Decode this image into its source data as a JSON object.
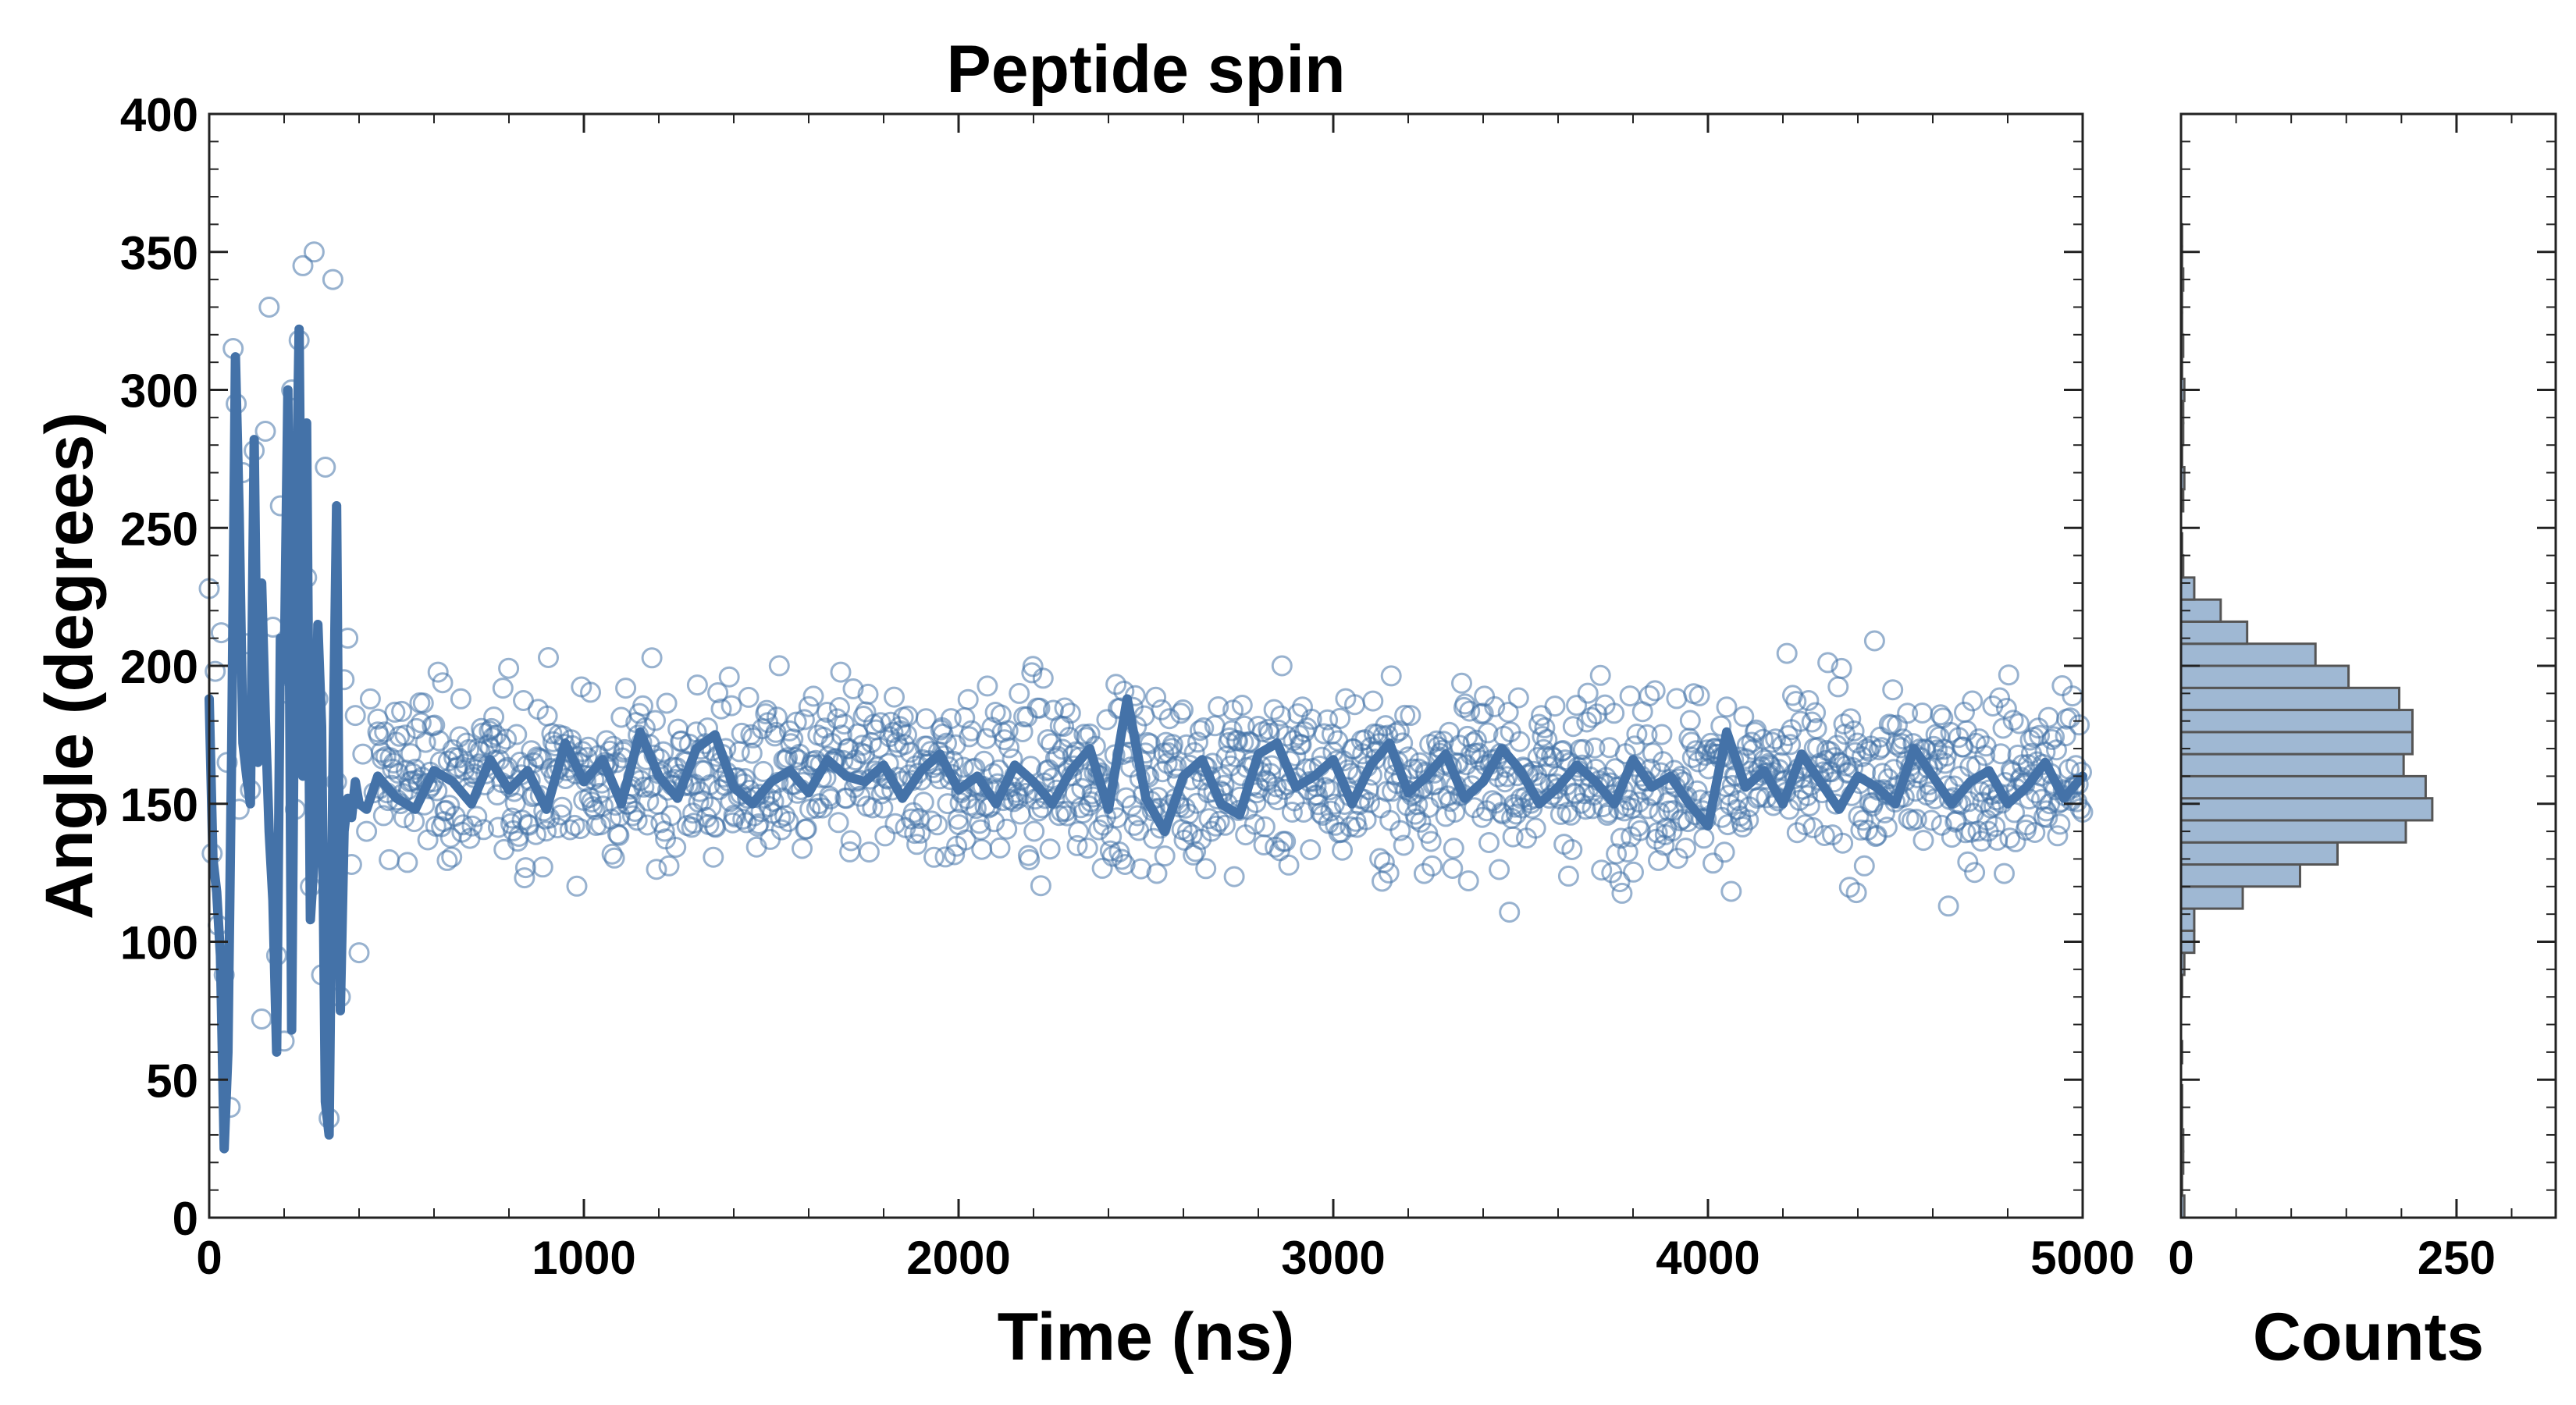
{
  "chart_data": [
    {
      "type": "scatter",
      "title": "Peptide spin",
      "xlabel": "Time (ns)",
      "ylabel": "Angle (degrees)",
      "xlim": [
        0,
        5000
      ],
      "ylim": [
        0,
        400
      ],
      "xticks": [
        0,
        1000,
        2000,
        3000,
        4000,
        5000
      ],
      "yticks": [
        0,
        50,
        100,
        150,
        200,
        250,
        300,
        350,
        400
      ],
      "grid": false,
      "colors": {
        "points": "#4472a8",
        "line": "#4472a8"
      },
      "series": [
        {
          "kind": "scatter-open-circles",
          "points": [
            [
              0,
              228
            ],
            [
              8,
              132
            ],
            [
              16,
              198
            ],
            [
              24,
              106
            ],
            [
              32,
              212
            ],
            [
              40,
              88
            ],
            [
              48,
              165
            ],
            [
              56,
              40
            ],
            [
              64,
              315
            ],
            [
              72,
              295
            ],
            [
              80,
              148
            ],
            [
              90,
              270
            ],
            [
              100,
              208
            ],
            [
              110,
              155
            ],
            [
              120,
              278
            ],
            [
              130,
              178
            ],
            [
              140,
              72
            ],
            [
              150,
              285
            ],
            [
              160,
              330
            ],
            [
              170,
              214
            ],
            [
              180,
              95
            ],
            [
              190,
              258
            ],
            [
              200,
              64
            ],
            [
              210,
              190
            ],
            [
              220,
              300
            ],
            [
              230,
              148
            ],
            [
              240,
              318
            ],
            [
              250,
              345
            ],
            [
              260,
              232
            ],
            [
              270,
              120
            ],
            [
              280,
              350
            ],
            [
              290,
              188
            ],
            [
              300,
              88
            ],
            [
              310,
              272
            ],
            [
              320,
              36
            ],
            [
              330,
              340
            ],
            [
              340,
              158
            ],
            [
              350,
              80
            ],
            [
              360,
              195
            ],
            [
              370,
              210
            ],
            [
              380,
              128
            ],
            [
              390,
              182
            ],
            [
              400,
              96
            ],
            [
              410,
              168
            ],
            [
              420,
              140
            ],
            [
              430,
              188
            ],
            [
              440,
              154
            ],
            [
              450,
              176
            ]
          ],
          "bulk": {
            "x_range": [
              450,
              5000
            ],
            "center": 160,
            "spread": 22,
            "min": 95,
            "max": 226
          }
        },
        {
          "kind": "line",
          "name": "",
          "points": [
            [
              0,
              188
            ],
            [
              10,
              130
            ],
            [
              20,
              118
            ],
            [
              30,
              95
            ],
            [
              40,
              25
            ],
            [
              50,
              60
            ],
            [
              60,
              170
            ],
            [
              70,
              312
            ],
            [
              80,
              255
            ],
            [
              90,
              172
            ],
            [
              100,
              160
            ],
            [
              110,
              150
            ],
            [
              120,
              282
            ],
            [
              130,
              165
            ],
            [
              140,
              230
            ],
            [
              150,
              180
            ],
            [
              160,
              140
            ],
            [
              170,
              115
            ],
            [
              180,
              60
            ],
            [
              190,
              210
            ],
            [
              200,
              195
            ],
            [
              210,
              300
            ],
            [
              220,
              68
            ],
            [
              230,
              238
            ],
            [
              240,
              322
            ],
            [
              250,
              160
            ],
            [
              260,
              288
            ],
            [
              270,
              108
            ],
            [
              280,
              130
            ],
            [
              290,
              215
            ],
            [
              300,
              178
            ],
            [
              310,
              42
            ],
            [
              320,
              30
            ],
            [
              330,
              160
            ],
            [
              340,
              258
            ],
            [
              350,
              75
            ],
            [
              360,
              140
            ],
            [
              370,
              152
            ],
            [
              380,
              145
            ],
            [
              390,
              158
            ],
            [
              400,
              150
            ],
            [
              420,
              148
            ],
            [
              450,
              160
            ],
            [
              500,
              152
            ],
            [
              550,
              148
            ],
            [
              600,
              162
            ],
            [
              650,
              158
            ],
            [
              700,
              150
            ],
            [
              750,
              166
            ],
            [
              800,
              155
            ],
            [
              850,
              162
            ],
            [
              900,
              148
            ],
            [
              950,
              172
            ],
            [
              1000,
              158
            ],
            [
              1050,
              166
            ],
            [
              1100,
              150
            ],
            [
              1150,
              176
            ],
            [
              1200,
              160
            ],
            [
              1250,
              152
            ],
            [
              1300,
              170
            ],
            [
              1350,
              175
            ],
            [
              1400,
              156
            ],
            [
              1450,
              150
            ],
            [
              1500,
              158
            ],
            [
              1550,
              162
            ],
            [
              1600,
              154
            ],
            [
              1650,
              166
            ],
            [
              1700,
              160
            ],
            [
              1750,
              158
            ],
            [
              1800,
              164
            ],
            [
              1850,
              152
            ],
            [
              1900,
              162
            ],
            [
              1950,
              168
            ],
            [
              2000,
              155
            ],
            [
              2050,
              160
            ],
            [
              2100,
              150
            ],
            [
              2150,
              164
            ],
            [
              2200,
              158
            ],
            [
              2250,
              150
            ],
            [
              2300,
              162
            ],
            [
              2350,
              170
            ],
            [
              2400,
              148
            ],
            [
              2450,
              188
            ],
            [
              2500,
              152
            ],
            [
              2550,
              140
            ],
            [
              2600,
              160
            ],
            [
              2650,
              166
            ],
            [
              2700,
              150
            ],
            [
              2750,
              146
            ],
            [
              2800,
              168
            ],
            [
              2850,
              172
            ],
            [
              2900,
              156
            ],
            [
              2950,
              160
            ],
            [
              3000,
              166
            ],
            [
              3050,
              150
            ],
            [
              3100,
              164
            ],
            [
              3150,
              172
            ],
            [
              3200,
              154
            ],
            [
              3250,
              160
            ],
            [
              3300,
              168
            ],
            [
              3350,
              152
            ],
            [
              3400,
              158
            ],
            [
              3450,
              170
            ],
            [
              3500,
              162
            ],
            [
              3550,
              150
            ],
            [
              3600,
              156
            ],
            [
              3650,
              164
            ],
            [
              3700,
              158
            ],
            [
              3750,
              150
            ],
            [
              3800,
              166
            ],
            [
              3850,
              156
            ],
            [
              3900,
              160
            ],
            [
              3950,
              150
            ],
            [
              4000,
              142
            ],
            [
              4050,
              176
            ],
            [
              4100,
              156
            ],
            [
              4150,
              162
            ],
            [
              4200,
              150
            ],
            [
              4250,
              168
            ],
            [
              4300,
              158
            ],
            [
              4350,
              148
            ],
            [
              4400,
              160
            ],
            [
              4450,
              156
            ],
            [
              4500,
              150
            ],
            [
              4550,
              170
            ],
            [
              4600,
              160
            ],
            [
              4650,
              150
            ],
            [
              4700,
              158
            ],
            [
              4750,
              162
            ],
            [
              4800,
              150
            ],
            [
              4850,
              156
            ],
            [
              4900,
              165
            ],
            [
              4950,
              152
            ],
            [
              5000,
              160
            ]
          ]
        }
      ]
    },
    {
      "type": "bar",
      "orientation": "horizontal",
      "xlabel": "Counts",
      "xlim": [
        0,
        340
      ],
      "xticks": [
        0,
        250
      ],
      "ylim": [
        0,
        400
      ],
      "bin_width": 8,
      "colors": {
        "fill": "#9fb8d3",
        "edge": "#555555"
      },
      "bins": [
        [
          0,
          3
        ],
        [
          8,
          1
        ],
        [
          16,
          2
        ],
        [
          24,
          2
        ],
        [
          32,
          1
        ],
        [
          40,
          1
        ],
        [
          48,
          0
        ],
        [
          56,
          1
        ],
        [
          64,
          0
        ],
        [
          72,
          0
        ],
        [
          80,
          1
        ],
        [
          88,
          3
        ],
        [
          96,
          12
        ],
        [
          104,
          12
        ],
        [
          112,
          56
        ],
        [
          120,
          108
        ],
        [
          128,
          142
        ],
        [
          136,
          204
        ],
        [
          144,
          228
        ],
        [
          152,
          222
        ],
        [
          160,
          202
        ],
        [
          168,
          210
        ],
        [
          176,
          210
        ],
        [
          184,
          198
        ],
        [
          192,
          152
        ],
        [
          200,
          122
        ],
        [
          208,
          60
        ],
        [
          216,
          36
        ],
        [
          224,
          12
        ],
        [
          232,
          2
        ],
        [
          240,
          1
        ],
        [
          248,
          0
        ],
        [
          256,
          2
        ],
        [
          264,
          3
        ],
        [
          272,
          1
        ],
        [
          280,
          2
        ],
        [
          288,
          2
        ],
        [
          296,
          3
        ],
        [
          304,
          1
        ],
        [
          312,
          2
        ],
        [
          320,
          1
        ],
        [
          328,
          1
        ],
        [
          336,
          2
        ],
        [
          344,
          1
        ],
        [
          352,
          1
        ]
      ]
    }
  ]
}
